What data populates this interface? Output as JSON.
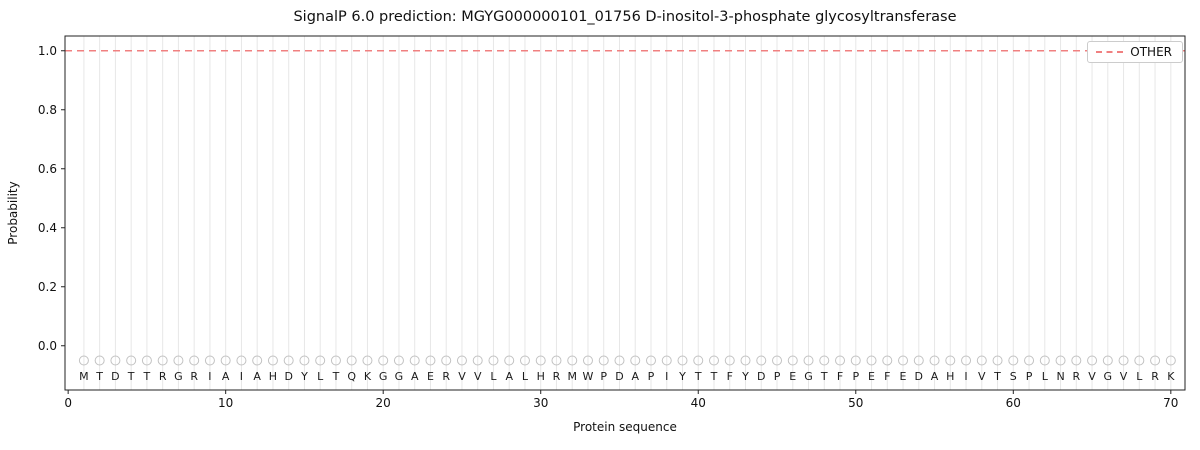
{
  "chart_data": {
    "type": "line",
    "title": "SignalP 6.0 prediction: MGYG000000101_01756 D-inositol-3-phosphate glycosyltransferase",
    "xlabel": "Protein sequence",
    "ylabel": "Probability",
    "xlim": [
      -0.2,
      70.9
    ],
    "ylim": [
      -0.15,
      1.05
    ],
    "xticks": [
      0,
      10,
      20,
      30,
      40,
      50,
      60,
      70
    ],
    "yticks": [
      0.0,
      0.2,
      0.4,
      0.6,
      0.8,
      1.0
    ],
    "grid": "vertical-line-per-residue",
    "legend": {
      "position": "upper right",
      "entries": [
        {
          "label": "OTHER",
          "style": "dashed",
          "color": "#f08080"
        }
      ]
    },
    "series": [
      {
        "name": "OTHER",
        "style": "dashed",
        "color": "#f08080",
        "constant_value": 1.0,
        "x_start": -0.2,
        "x_end": 70.9
      }
    ],
    "sequence": "MTDTTRGRIAIAHDYLTQKGGAERVVLALHRMWPDAPIYTTFYDPEGTFPEFEDAHIVTSPLNRVGVLRK",
    "marker_row_value": -0.05,
    "colors": {
      "dashed_line": "#f08080",
      "grid": "#e7e7e7",
      "marker_stroke": "#c2c2c2",
      "spine": "#222222",
      "text": "#111111"
    }
  }
}
